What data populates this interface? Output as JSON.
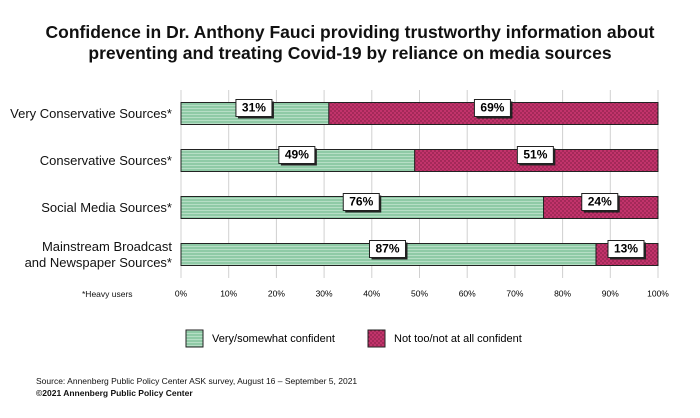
{
  "chart_data": {
    "type": "stacked-bar-horizontal",
    "title": "Confidence in Dr. Anthony Fauci providing trustworthy information about\npreventing and treating Covid-19 by reliance on media sources",
    "categories": [
      "Very Conservative Sources*",
      "Conservative Sources*",
      "Social Media Sources*",
      "Mainstream Broadcast\nand Newspaper Sources*"
    ],
    "series": [
      {
        "name": "Very/somewhat confident",
        "color": "#8fcaa6",
        "values": [
          31,
          49,
          76,
          87
        ],
        "value_labels": [
          "31%",
          "49%",
          "76%",
          "87%"
        ]
      },
      {
        "name": "Not too/not at all confident",
        "color": "#c2336b",
        "values": [
          69,
          51,
          24,
          13
        ],
        "value_labels": [
          "69%",
          "51%",
          "24%",
          "13%"
        ]
      }
    ],
    "xlim": [
      0,
      100
    ],
    "xticks": [
      {
        "value": 0,
        "label": "0%"
      },
      {
        "value": 10,
        "label": "10%"
      },
      {
        "value": 20,
        "label": "20%"
      },
      {
        "value": 30,
        "label": "30%"
      },
      {
        "value": 40,
        "label": "40%"
      },
      {
        "value": 50,
        "label": "50%"
      },
      {
        "value": 60,
        "label": "60%"
      },
      {
        "value": 70,
        "label": "70%"
      },
      {
        "value": 80,
        "label": "80%"
      },
      {
        "value": 90,
        "label": "90%"
      },
      {
        "value": 100,
        "label": "100%"
      }
    ],
    "grid": true,
    "footnote": "*Heavy users",
    "source": "Source: Annenberg Public Policy Center ASK survey, August 16 – September 5, 2021",
    "copyright": "©2021 Annenberg Public Policy Center"
  }
}
